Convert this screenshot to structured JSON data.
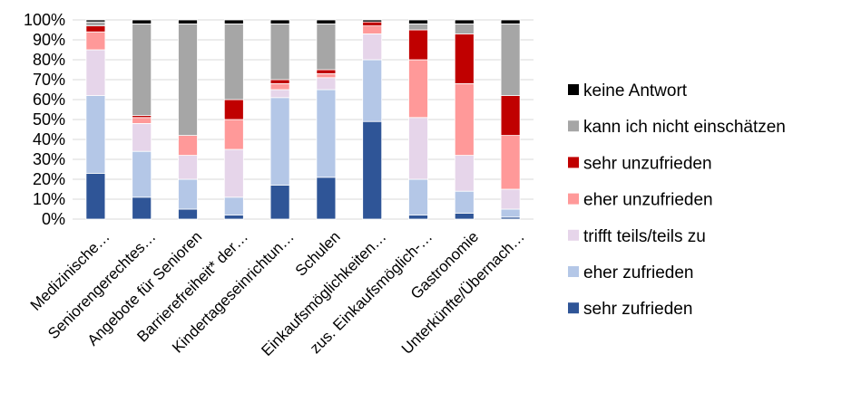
{
  "chart_data": {
    "type": "bar",
    "stacked": true,
    "percent": true,
    "categories": [
      "Medizinische…",
      "Seniorengerechtes…",
      "Angebote für Senioren",
      "Barrierefreiheit* der…",
      "Kindertageseinrichtun…",
      "Schulen",
      "Einkaufsmöglichkeiten…",
      "zus. Einkaufsmöglich-…",
      "Gastronomie",
      "Unterkünfte/Übernach…"
    ],
    "ylim": [
      0,
      100
    ],
    "yticks": [
      "0%",
      "10%",
      "20%",
      "30%",
      "40%",
      "50%",
      "60%",
      "70%",
      "80%",
      "90%",
      "100%"
    ],
    "grid": true,
    "legend_position": "right",
    "series": [
      {
        "name": "sehr zufrieden",
        "color": "#2f5597",
        "values": [
          23,
          11,
          5,
          2,
          17,
          21,
          49,
          2,
          3,
          1
        ]
      },
      {
        "name": "eher zufrieden",
        "color": "#b4c7e7",
        "values": [
          39,
          23,
          15,
          9,
          44,
          44,
          31,
          18,
          11,
          4
        ]
      },
      {
        "name": "trifft teils/teils zu",
        "color": "#e6d5ea",
        "values": [
          23,
          14,
          12,
          24,
          4,
          6,
          13,
          31,
          18,
          10
        ]
      },
      {
        "name": "eher unzufrieden",
        "color": "#ff9999",
        "values": [
          9,
          3,
          10,
          15,
          3,
          2,
          4,
          29,
          36,
          27
        ]
      },
      {
        "name": "sehr unzufrieden",
        "color": "#c00000",
        "values": [
          3,
          1,
          0,
          10,
          2,
          2,
          2,
          15,
          25,
          20
        ]
      },
      {
        "name": "kann ich nicht einschätzen",
        "color": "#a6a6a6",
        "values": [
          2,
          46,
          56,
          38,
          28,
          23,
          0,
          3,
          5,
          36
        ]
      },
      {
        "name": "keine Antwort",
        "color": "#000000",
        "values": [
          1,
          2,
          2,
          2,
          2,
          2,
          1,
          2,
          2,
          2
        ]
      }
    ]
  }
}
